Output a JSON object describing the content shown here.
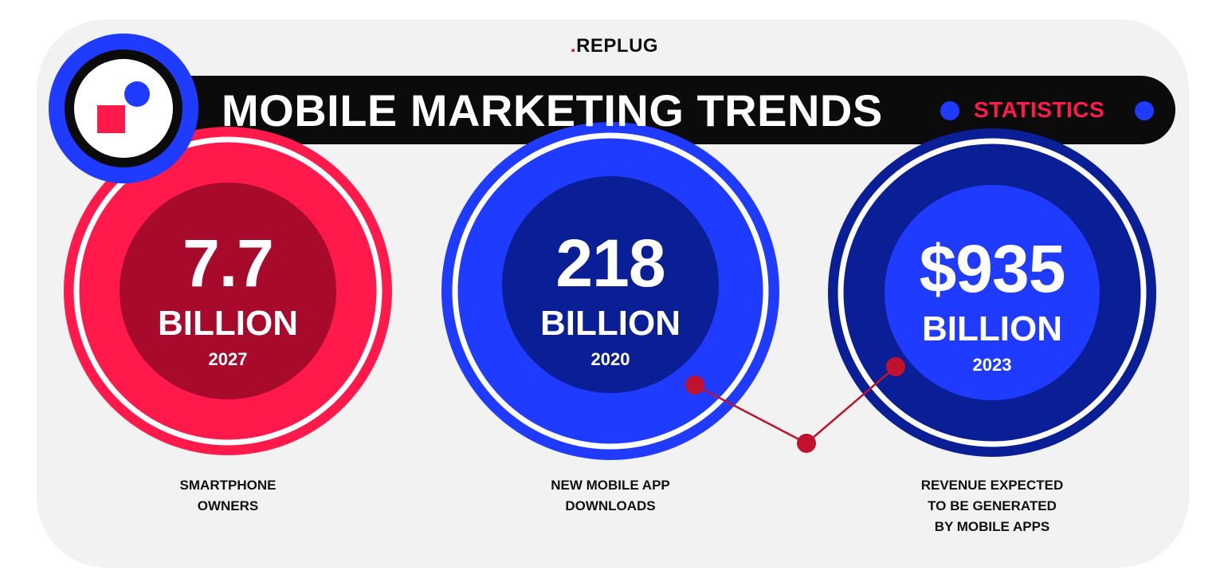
{
  "brand": {
    "name": "REPLUG",
    "prefix": "."
  },
  "banner": {
    "title": "MOBILE MARKETING TRENDS",
    "subtitle": "STATISTICS"
  },
  "colors": {
    "background": "#f2f2f2",
    "banner": "#0b0b0b",
    "accent_red": "#ff1a4b",
    "accent_blue": "#1f3bff",
    "navy": "#0a1e96",
    "dark_red": "#a80a2b"
  },
  "stats": [
    {
      "value": "7.7",
      "unit": "BILLION",
      "year": "2027",
      "caption": "SMARTPHONE\nOWNERS"
    },
    {
      "value": "218",
      "unit": "BILLION",
      "year": "2020",
      "caption": "NEW MOBILE APP\nDOWNLOADS"
    },
    {
      "value": "$935",
      "unit": "BILLION",
      "year": "2023",
      "caption": "REVENUE EXPECTED\nTO BE GENERATED\nBY MOBILE APPS"
    }
  ]
}
